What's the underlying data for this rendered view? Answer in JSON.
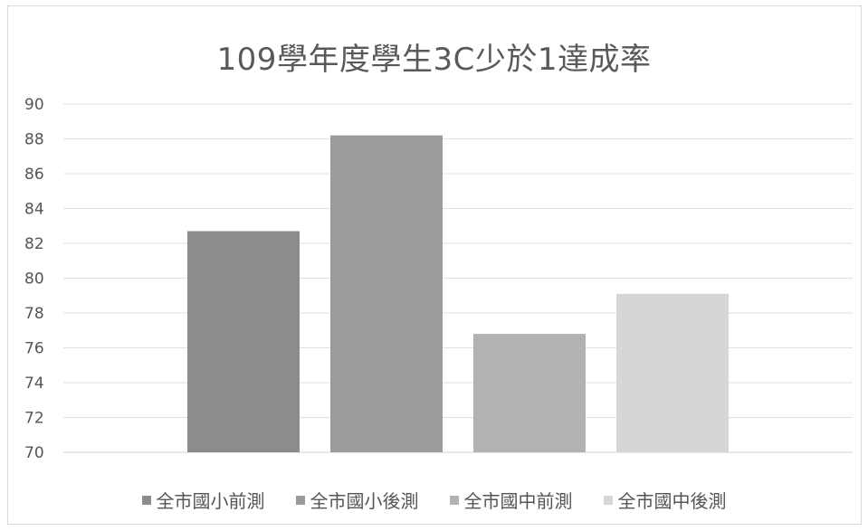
{
  "chart_data": {
    "type": "bar",
    "title": "109學年度學生3C少於1達成率",
    "xlabel": "",
    "ylabel": "",
    "ylim": [
      70,
      90
    ],
    "yticks": [
      70,
      72,
      74,
      76,
      78,
      80,
      82,
      84,
      86,
      88,
      90
    ],
    "grid": true,
    "legend_position": "bottom",
    "series": [
      {
        "name": "全市國小前測",
        "value": 82.7,
        "color": "#8c8c8c"
      },
      {
        "name": "全市國小後測",
        "value": 88.2,
        "color": "#9b9b9b"
      },
      {
        "name": "全市國中前測",
        "value": 76.8,
        "color": "#b2b2b2"
      },
      {
        "name": "全市國中後測",
        "value": 79.1,
        "color": "#d6d6d6"
      }
    ]
  }
}
